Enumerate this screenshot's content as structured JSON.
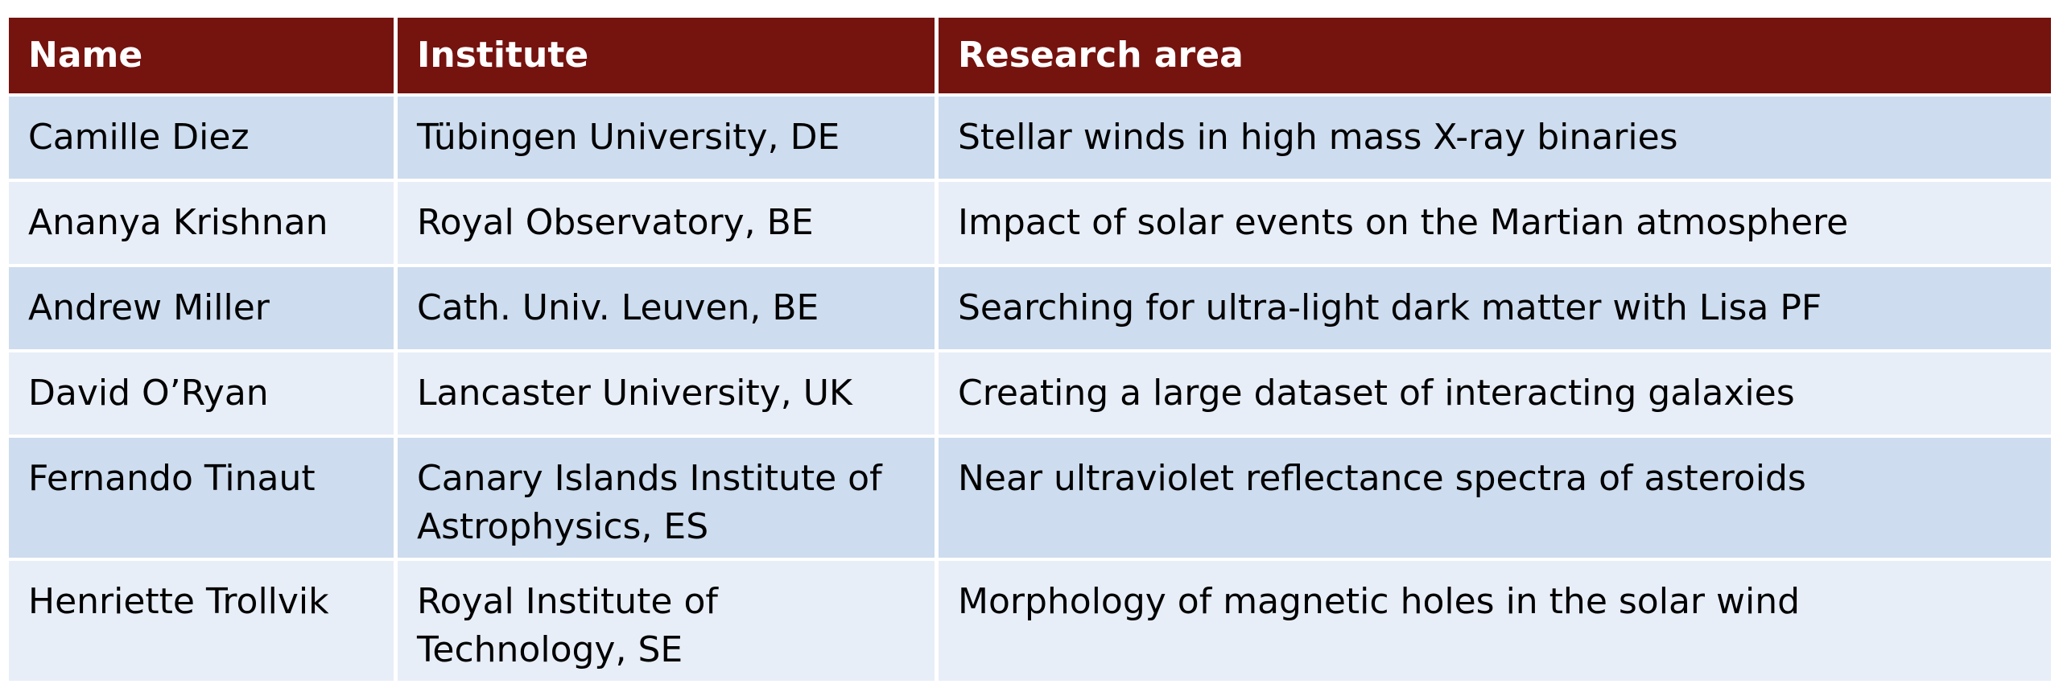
{
  "table": {
    "header": [
      "Name",
      "Institute",
      "Research area"
    ],
    "rows": [
      [
        "Camille Diez",
        "Tübingen University, DE",
        "Stellar winds in high mass X-ray binaries"
      ],
      [
        "Ananya Krishnan",
        "Royal Observatory, BE",
        "Impact of solar events on the Martian atmosphere"
      ],
      [
        "Andrew Miller",
        "Cath. Univ. Leuven, BE",
        "Searching for ultra-light dark matter with Lisa PF"
      ],
      [
        "David O’Ryan",
        "Lancaster University, UK",
        "Creating a large dataset of interacting galaxies"
      ],
      [
        "Fernando Tinaut",
        "Canary Islands Institute of Astrophysics, ES",
        "Near ultraviolet reflectance spectra of asteroids"
      ],
      [
        "Henriette Trollvik",
        "Royal Institute of Technology, SE",
        "Morphology of magnetic holes in the solar wind"
      ]
    ]
  }
}
